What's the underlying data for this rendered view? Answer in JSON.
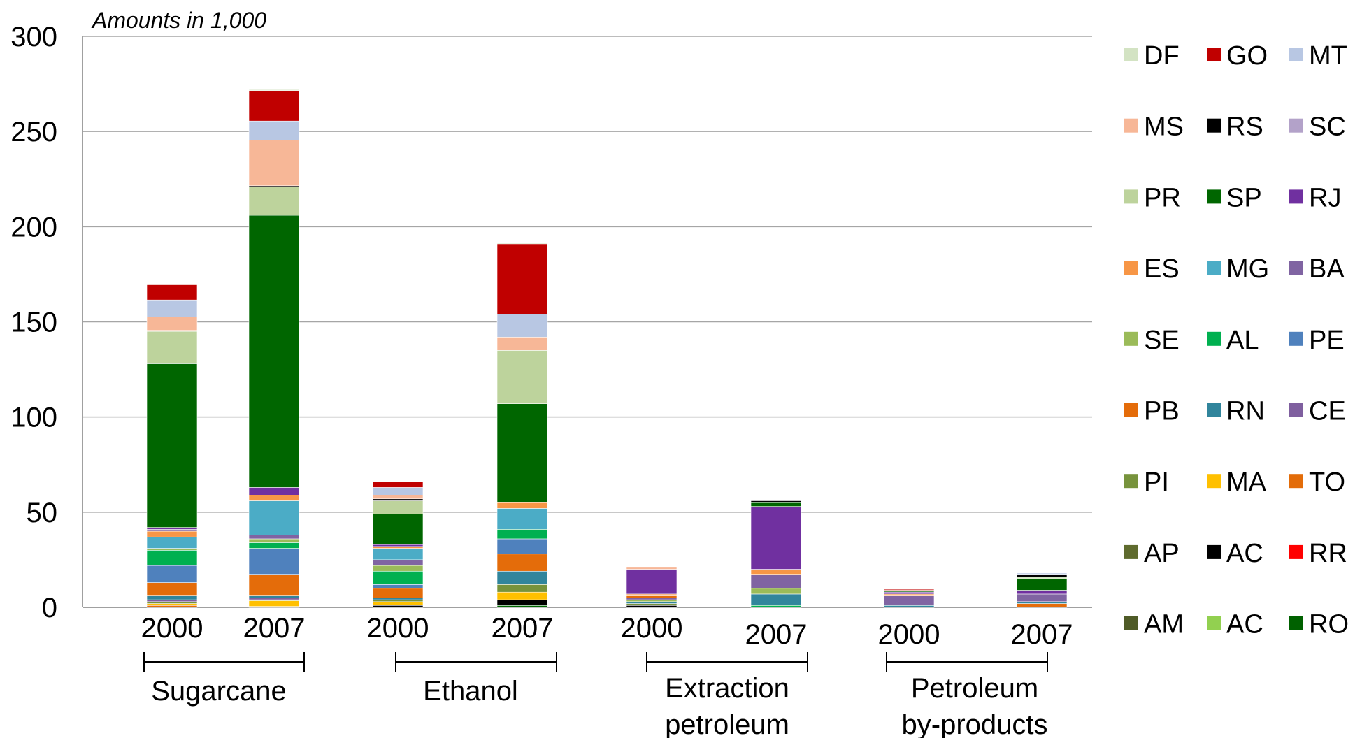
{
  "chart_data": {
    "type": "bar",
    "stacked": true,
    "unit_note": "Amounts in 1,000",
    "ylim": [
      0,
      300
    ],
    "y_ticks": [
      0,
      50,
      100,
      150,
      200,
      250,
      300
    ],
    "grid": true,
    "legend_position": "right",
    "bars": [
      {
        "label": "2000",
        "group": "Sugarcane"
      },
      {
        "label": "2007",
        "group": "Sugarcane"
      },
      {
        "label": "2000",
        "group": "Ethanol"
      },
      {
        "label": "2007",
        "group": "Ethanol"
      },
      {
        "label": "2000",
        "group": "Extraction petroleum"
      },
      {
        "label": "2007",
        "group": "Extraction petroleum"
      },
      {
        "label": "2000",
        "group": "Petroleum by-products"
      },
      {
        "label": "2007",
        "group": "Petroleum by-products"
      }
    ],
    "groups": [
      {
        "lines": [
          "Sugarcane"
        ]
      },
      {
        "lines": [
          "Ethanol"
        ]
      },
      {
        "lines": [
          "Extraction",
          "petroleum"
        ]
      },
      {
        "lines": [
          "Petroleum",
          "by-products"
        ]
      }
    ],
    "series": [
      {
        "name": "DF",
        "color": "#d3e3c3"
      },
      {
        "name": "GO",
        "color": "#c00000"
      },
      {
        "name": "MT",
        "color": "#b8c7e3"
      },
      {
        "name": "MS",
        "color": "#f7b797"
      },
      {
        "name": "RS",
        "color": "#000000"
      },
      {
        "name": "SC",
        "color": "#b3a2c9"
      },
      {
        "name": "PR",
        "color": "#bdd39c"
      },
      {
        "name": "SP",
        "color": "#006600"
      },
      {
        "name": "RJ",
        "color": "#7030a0"
      },
      {
        "name": "ES",
        "color": "#f79646"
      },
      {
        "name": "MG",
        "color": "#4bacc6"
      },
      {
        "name": "BA",
        "color": "#8064a2"
      },
      {
        "name": "SE",
        "color": "#9bbb59"
      },
      {
        "name": "AL",
        "color": "#00b050"
      },
      {
        "name": "PE",
        "color": "#4f81bd"
      },
      {
        "name": "PB",
        "color": "#e46c0a"
      },
      {
        "name": "RN",
        "color": "#31859c"
      },
      {
        "name": "CE",
        "color": "#7f5f9f"
      },
      {
        "name": "PI",
        "color": "#77933c"
      },
      {
        "name": "MA",
        "color": "#ffc000"
      },
      {
        "name": "TO",
        "color": "#e36c09"
      },
      {
        "name": "AP",
        "color": "#5f6b2e"
      },
      {
        "name": "AC",
        "color": "#000000"
      },
      {
        "name": "RR",
        "color": "#ff0000"
      },
      {
        "name": "AM",
        "color": "#4f5b27"
      },
      {
        "name": "AC",
        "color": "#92d050"
      },
      {
        "name": "RO",
        "color": "#006100"
      }
    ],
    "stacks": [
      [
        {
          "series": "TO",
          "value": 1
        },
        {
          "series": "MA",
          "value": 1
        },
        {
          "series": "PI",
          "value": 1
        },
        {
          "series": "CE",
          "value": 1
        },
        {
          "series": "RN",
          "value": 2
        },
        {
          "series": "PB",
          "value": 7
        },
        {
          "series": "PE",
          "value": 9
        },
        {
          "series": "AL",
          "value": 8
        },
        {
          "series": "SE",
          "value": 1
        },
        {
          "series": "MG",
          "value": 6
        },
        {
          "series": "ES",
          "value": 3
        },
        {
          "series": "BA",
          "value": 1
        },
        {
          "series": "RJ",
          "value": 1
        },
        {
          "series": "SP",
          "value": 86
        },
        {
          "series": "PR",
          "value": 17
        },
        {
          "series": "SC",
          "value": 0.5
        },
        {
          "series": "MS",
          "value": 7
        },
        {
          "series": "MT",
          "value": 9
        },
        {
          "series": "GO",
          "value": 8
        },
        {
          "series": "DF",
          "value": 0.5
        }
      ],
      [
        {
          "series": "TO",
          "value": 0.5
        },
        {
          "series": "MA",
          "value": 3
        },
        {
          "series": "PI",
          "value": 0.5
        },
        {
          "series": "CE",
          "value": 1
        },
        {
          "series": "RN",
          "value": 1
        },
        {
          "series": "PB",
          "value": 11
        },
        {
          "series": "PE",
          "value": 14
        },
        {
          "series": "AL",
          "value": 3
        },
        {
          "series": "SE",
          "value": 2
        },
        {
          "series": "BA",
          "value": 2
        },
        {
          "series": "MG",
          "value": 18
        },
        {
          "series": "ES",
          "value": 3
        },
        {
          "series": "RJ",
          "value": 4
        },
        {
          "series": "SP",
          "value": 143
        },
        {
          "series": "PR",
          "value": 15
        },
        {
          "series": "RS",
          "value": 0.5
        },
        {
          "series": "MS",
          "value": 24
        },
        {
          "series": "MT",
          "value": 10
        },
        {
          "series": "GO",
          "value": 16
        },
        {
          "series": "DF",
          "value": 0.5
        }
      ],
      [
        {
          "series": "RS",
          "value": 1
        },
        {
          "series": "MA",
          "value": 2
        },
        {
          "series": "PI",
          "value": 1
        },
        {
          "series": "RN",
          "value": 1
        },
        {
          "series": "PB",
          "value": 5
        },
        {
          "series": "PE",
          "value": 2
        },
        {
          "series": "AL",
          "value": 7
        },
        {
          "series": "SE",
          "value": 3
        },
        {
          "series": "BA",
          "value": 3
        },
        {
          "series": "MG",
          "value": 6
        },
        {
          "series": "ES",
          "value": 1
        },
        {
          "series": "RJ",
          "value": 1
        },
        {
          "series": "SP",
          "value": 16
        },
        {
          "series": "PR",
          "value": 7
        },
        {
          "series": "RS",
          "value": 1
        },
        {
          "series": "MS",
          "value": 2
        },
        {
          "series": "MT",
          "value": 4
        },
        {
          "series": "GO",
          "value": 3
        }
      ],
      [
        {
          "series": "SP",
          "value": 1
        },
        {
          "series": "AC",
          "value": 3
        },
        {
          "series": "MA",
          "value": 4
        },
        {
          "series": "PI",
          "value": 4
        },
        {
          "series": "RN",
          "value": 7
        },
        {
          "series": "PB",
          "value": 9
        },
        {
          "series": "PE",
          "value": 8
        },
        {
          "series": "AL",
          "value": 5
        },
        {
          "series": "MG",
          "value": 11
        },
        {
          "series": "ES",
          "value": 3
        },
        {
          "series": "SP",
          "value": 52
        },
        {
          "series": "PR",
          "value": 28
        },
        {
          "series": "MS",
          "value": 7
        },
        {
          "series": "MT",
          "value": 12
        },
        {
          "series": "GO",
          "value": 37
        },
        {
          "series": "DF",
          "value": 0.5
        }
      ],
      [
        {
          "series": "RS",
          "value": 1
        },
        {
          "series": "PI",
          "value": 1
        },
        {
          "series": "RN",
          "value": 1
        },
        {
          "series": "SE",
          "value": 1
        },
        {
          "series": "BA",
          "value": 1
        },
        {
          "series": "PB",
          "value": 1
        },
        {
          "series": "ES",
          "value": 1
        },
        {
          "series": "RJ",
          "value": 13
        },
        {
          "series": "MS",
          "value": 1
        }
      ],
      [
        {
          "series": "AL",
          "value": 1
        },
        {
          "series": "RN",
          "value": 6
        },
        {
          "series": "SE",
          "value": 3
        },
        {
          "series": "BA",
          "value": 7
        },
        {
          "series": "ES",
          "value": 3
        },
        {
          "series": "RJ",
          "value": 33
        },
        {
          "series": "SP",
          "value": 2
        },
        {
          "series": "AC",
          "value": 1
        }
      ],
      [
        {
          "series": "RN",
          "value": 1
        },
        {
          "series": "BA",
          "value": 5
        },
        {
          "series": "ES",
          "value": 1
        },
        {
          "series": "RJ",
          "value": 1
        },
        {
          "series": "SP",
          "value": 0.5
        },
        {
          "series": "PB",
          "value": 0.5
        },
        {
          "series": "GO",
          "value": 0.5
        }
      ],
      [
        {
          "series": "PB",
          "value": 2
        },
        {
          "series": "RN",
          "value": 1
        },
        {
          "series": "BA",
          "value": 4
        },
        {
          "series": "RJ",
          "value": 2
        },
        {
          "series": "SP",
          "value": 6
        },
        {
          "series": "DF",
          "value": 1
        },
        {
          "series": "RS",
          "value": 1
        },
        {
          "series": "MT",
          "value": 1
        }
      ]
    ]
  }
}
